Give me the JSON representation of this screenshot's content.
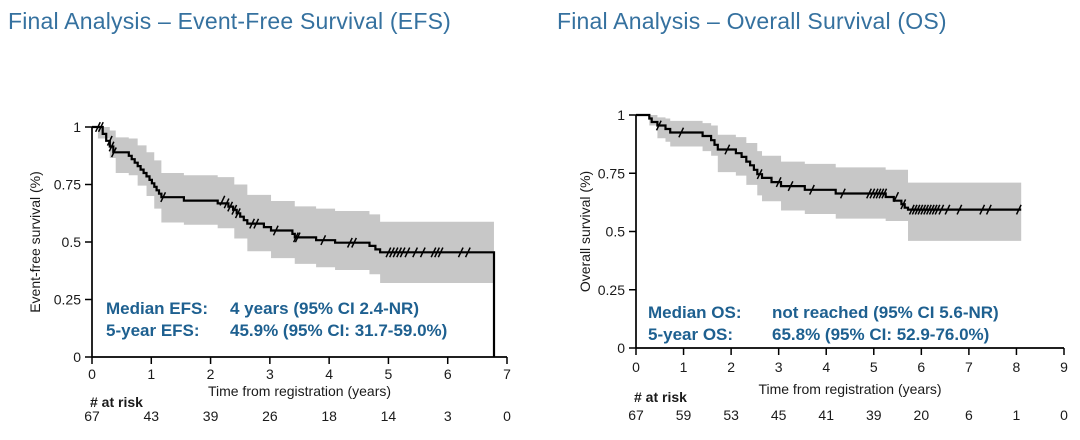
{
  "colors": {
    "title": "#35719F",
    "annotation": "#1E6090",
    "curve": "#000000",
    "ci": "#c7c7c7",
    "axis": "#000000",
    "text": "#1a1a1a"
  },
  "chart_data": [
    {
      "type": "line",
      "subtype": "kaplan_meier_step",
      "title": "Final Analysis – Event-Free Survival (EFS)",
      "xlabel": "Time from registration (years)",
      "ylabel": "Event-free survival (%)",
      "xlim": [
        0,
        7
      ],
      "ylim": [
        0,
        1
      ],
      "grid": false,
      "xticks": [
        0,
        1,
        2,
        3,
        4,
        5,
        6,
        7
      ],
      "yticks": [
        0,
        0.25,
        0.5,
        0.75,
        1
      ],
      "ytick_labels": [
        "0",
        "0.25",
        "0.5",
        "0.75",
        "1"
      ],
      "annotation_rows": [
        {
          "label": "Median EFS:",
          "value": "4 years (95% CI 2.4-NR)"
        },
        {
          "label": "5-year EFS:",
          "value": "45.9% (95% CI: 31.7-59.0%)"
        }
      ],
      "at_risk_label": "# at risk",
      "at_risk": [
        67,
        43,
        39,
        26,
        18,
        14,
        3,
        0
      ],
      "steps": [
        [
          0,
          1.0
        ],
        [
          0.18,
          1.0
        ],
        [
          0.18,
          0.97
        ],
        [
          0.24,
          0.97
        ],
        [
          0.24,
          0.94
        ],
        [
          0.3,
          0.94
        ],
        [
          0.3,
          0.915
        ],
        [
          0.36,
          0.915
        ],
        [
          0.36,
          0.89
        ],
        [
          0.62,
          0.89
        ],
        [
          0.62,
          0.875
        ],
        [
          0.67,
          0.875
        ],
        [
          0.67,
          0.86
        ],
        [
          0.72,
          0.86
        ],
        [
          0.72,
          0.845
        ],
        [
          0.77,
          0.845
        ],
        [
          0.77,
          0.83
        ],
        [
          0.82,
          0.83
        ],
        [
          0.82,
          0.815
        ],
        [
          0.87,
          0.815
        ],
        [
          0.87,
          0.8
        ],
        [
          0.92,
          0.8
        ],
        [
          0.92,
          0.785
        ],
        [
          0.97,
          0.785
        ],
        [
          0.97,
          0.77
        ],
        [
          1.01,
          0.77
        ],
        [
          1.01,
          0.755
        ],
        [
          1.05,
          0.755
        ],
        [
          1.05,
          0.74
        ],
        [
          1.09,
          0.74
        ],
        [
          1.09,
          0.725
        ],
        [
          1.13,
          0.725
        ],
        [
          1.13,
          0.71
        ],
        [
          1.17,
          0.71
        ],
        [
          1.17,
          0.695
        ],
        [
          1.55,
          0.695
        ],
        [
          1.55,
          0.68
        ],
        [
          2.12,
          0.68
        ],
        [
          2.12,
          0.668
        ],
        [
          2.3,
          0.668
        ],
        [
          2.3,
          0.654
        ],
        [
          2.38,
          0.654
        ],
        [
          2.38,
          0.64
        ],
        [
          2.44,
          0.64
        ],
        [
          2.44,
          0.625
        ],
        [
          2.5,
          0.625
        ],
        [
          2.5,
          0.61
        ],
        [
          2.56,
          0.61
        ],
        [
          2.56,
          0.595
        ],
        [
          2.62,
          0.595
        ],
        [
          2.62,
          0.58
        ],
        [
          2.9,
          0.58
        ],
        [
          2.9,
          0.565
        ],
        [
          3.02,
          0.565
        ],
        [
          3.02,
          0.55
        ],
        [
          3.38,
          0.55
        ],
        [
          3.38,
          0.535
        ],
        [
          3.42,
          0.535
        ],
        [
          3.42,
          0.52
        ],
        [
          3.78,
          0.52
        ],
        [
          3.78,
          0.508
        ],
        [
          4.1,
          0.508
        ],
        [
          4.1,
          0.497
        ],
        [
          4.68,
          0.497
        ],
        [
          4.68,
          0.483
        ],
        [
          4.78,
          0.483
        ],
        [
          4.78,
          0.468
        ],
        [
          4.86,
          0.468
        ],
        [
          4.86,
          0.455
        ],
        [
          6.78,
          0.455
        ],
        [
          6.78,
          0
        ]
      ],
      "censor_marks": [
        [
          0.1,
          1.0
        ],
        [
          0.15,
          1.0
        ],
        [
          0.3,
          0.94
        ],
        [
          0.33,
          0.915
        ],
        [
          0.37,
          0.89
        ],
        [
          1.2,
          0.695
        ],
        [
          2.2,
          0.68
        ],
        [
          2.27,
          0.668
        ],
        [
          2.33,
          0.654
        ],
        [
          2.4,
          0.64
        ],
        [
          2.46,
          0.625
        ],
        [
          2.7,
          0.58
        ],
        [
          2.77,
          0.58
        ],
        [
          3.1,
          0.55
        ],
        [
          3.44,
          0.52
        ],
        [
          3.47,
          0.52
        ],
        [
          3.9,
          0.508
        ],
        [
          4.35,
          0.497
        ],
        [
          4.42,
          0.497
        ],
        [
          5.0,
          0.455
        ],
        [
          5.06,
          0.455
        ],
        [
          5.12,
          0.455
        ],
        [
          5.18,
          0.455
        ],
        [
          5.24,
          0.455
        ],
        [
          5.32,
          0.455
        ],
        [
          5.45,
          0.455
        ],
        [
          5.58,
          0.455
        ],
        [
          5.76,
          0.455
        ],
        [
          5.82,
          0.455
        ],
        [
          5.88,
          0.455
        ],
        [
          6.22,
          0.455
        ],
        [
          6.34,
          0.455
        ]
      ],
      "ci_band": {
        "breaks": [
          {
            "x": 0.1,
            "lo": 0.95,
            "hi": 1.0
          },
          {
            "x": 0.3,
            "lo": 0.865,
            "hi": 0.985
          },
          {
            "x": 0.4,
            "lo": 0.8,
            "hi": 0.955
          },
          {
            "x": 0.62,
            "lo": 0.79,
            "hi": 0.95
          },
          {
            "x": 0.77,
            "lo": 0.745,
            "hi": 0.92
          },
          {
            "x": 0.92,
            "lo": 0.7,
            "hi": 0.89
          },
          {
            "x": 1.05,
            "lo": 0.645,
            "hi": 0.855
          },
          {
            "x": 1.17,
            "lo": 0.585,
            "hi": 0.8
          },
          {
            "x": 1.55,
            "lo": 0.575,
            "hi": 0.79
          },
          {
            "x": 2.12,
            "lo": 0.56,
            "hi": 0.782
          },
          {
            "x": 2.4,
            "lo": 0.515,
            "hi": 0.75
          },
          {
            "x": 2.62,
            "lo": 0.46,
            "hi": 0.705
          },
          {
            "x": 3.02,
            "lo": 0.43,
            "hi": 0.678
          },
          {
            "x": 3.42,
            "lo": 0.405,
            "hi": 0.655
          },
          {
            "x": 3.78,
            "lo": 0.39,
            "hi": 0.645
          },
          {
            "x": 4.1,
            "lo": 0.378,
            "hi": 0.635
          },
          {
            "x": 4.68,
            "lo": 0.36,
            "hi": 0.62
          },
          {
            "x": 4.86,
            "lo": 0.322,
            "hi": 0.588
          }
        ],
        "xend": 6.78
      }
    },
    {
      "type": "line",
      "subtype": "kaplan_meier_step",
      "title": "Final Analysis – Overall Survival (OS)",
      "xlabel": "Time from registration (years)",
      "ylabel": "Overall survival (%)",
      "xlim": [
        0,
        9
      ],
      "ylim": [
        0,
        1
      ],
      "grid": false,
      "xticks": [
        0,
        1,
        2,
        3,
        4,
        5,
        6,
        7,
        8,
        9
      ],
      "yticks": [
        0,
        0.25,
        0.5,
        0.75,
        1
      ],
      "ytick_labels": [
        "0",
        "0.25",
        "0.5",
        "0.75",
        "1"
      ],
      "annotation_rows": [
        {
          "label": "Median OS:",
          "value": "not reached (95% CI 5.6-NR)"
        },
        {
          "label": "5-year OS:",
          "value": "65.8% (95% CI: 52.9-76.0%)"
        }
      ],
      "at_risk_label": "# at risk",
      "at_risk": [
        67,
        59,
        53,
        45,
        41,
        39,
        20,
        6,
        1,
        0
      ],
      "steps": [
        [
          0,
          1.0
        ],
        [
          0.28,
          1.0
        ],
        [
          0.28,
          0.985
        ],
        [
          0.33,
          0.985
        ],
        [
          0.33,
          0.97
        ],
        [
          0.45,
          0.97
        ],
        [
          0.45,
          0.955
        ],
        [
          0.62,
          0.955
        ],
        [
          0.62,
          0.94
        ],
        [
          0.72,
          0.94
        ],
        [
          0.72,
          0.925
        ],
        [
          1.4,
          0.925
        ],
        [
          1.4,
          0.91
        ],
        [
          1.58,
          0.91
        ],
        [
          1.58,
          0.892
        ],
        [
          1.65,
          0.892
        ],
        [
          1.65,
          0.872
        ],
        [
          1.72,
          0.872
        ],
        [
          1.72,
          0.852
        ],
        [
          2.1,
          0.852
        ],
        [
          2.1,
          0.836
        ],
        [
          2.22,
          0.836
        ],
        [
          2.22,
          0.82
        ],
        [
          2.32,
          0.82
        ],
        [
          2.32,
          0.8
        ],
        [
          2.4,
          0.8
        ],
        [
          2.4,
          0.784
        ],
        [
          2.48,
          0.784
        ],
        [
          2.48,
          0.765
        ],
        [
          2.55,
          0.765
        ],
        [
          2.55,
          0.746
        ],
        [
          2.65,
          0.746
        ],
        [
          2.65,
          0.73
        ],
        [
          2.85,
          0.73
        ],
        [
          2.85,
          0.712
        ],
        [
          3.05,
          0.712
        ],
        [
          3.05,
          0.695
        ],
        [
          3.55,
          0.695
        ],
        [
          3.55,
          0.679
        ],
        [
          4.2,
          0.679
        ],
        [
          4.2,
          0.663
        ],
        [
          5.25,
          0.663
        ],
        [
          5.25,
          0.648
        ],
        [
          5.42,
          0.648
        ],
        [
          5.42,
          0.632
        ],
        [
          5.58,
          0.632
        ],
        [
          5.58,
          0.617
        ],
        [
          5.65,
          0.617
        ],
        [
          5.65,
          0.602
        ],
        [
          5.72,
          0.602
        ],
        [
          5.72,
          0.594
        ],
        [
          8.1,
          0.594
        ]
      ],
      "censor_marks": [
        [
          0.48,
          0.955
        ],
        [
          0.95,
          0.925
        ],
        [
          1.92,
          0.852
        ],
        [
          2.6,
          0.746
        ],
        [
          3.0,
          0.712
        ],
        [
          3.25,
          0.695
        ],
        [
          3.7,
          0.679
        ],
        [
          4.35,
          0.663
        ],
        [
          4.9,
          0.663
        ],
        [
          4.97,
          0.663
        ],
        [
          5.04,
          0.663
        ],
        [
          5.1,
          0.663
        ],
        [
          5.16,
          0.663
        ],
        [
          5.22,
          0.663
        ],
        [
          5.47,
          0.648
        ],
        [
          5.62,
          0.617
        ],
        [
          5.8,
          0.594
        ],
        [
          5.86,
          0.594
        ],
        [
          5.92,
          0.594
        ],
        [
          5.98,
          0.594
        ],
        [
          6.04,
          0.594
        ],
        [
          6.1,
          0.594
        ],
        [
          6.16,
          0.594
        ],
        [
          6.22,
          0.594
        ],
        [
          6.28,
          0.594
        ],
        [
          6.34,
          0.594
        ],
        [
          6.42,
          0.594
        ],
        [
          6.55,
          0.594
        ],
        [
          6.8,
          0.594
        ],
        [
          7.28,
          0.594
        ],
        [
          7.42,
          0.594
        ],
        [
          8.05,
          0.594
        ]
      ],
      "ci_band": {
        "breaks": [
          {
            "x": 0.28,
            "lo": 0.955,
            "hi": 1.0
          },
          {
            "x": 0.45,
            "lo": 0.9,
            "hi": 0.99
          },
          {
            "x": 0.62,
            "lo": 0.885,
            "hi": 0.985
          },
          {
            "x": 0.72,
            "lo": 0.865,
            "hi": 0.975
          },
          {
            "x": 1.4,
            "lo": 0.845,
            "hi": 0.965
          },
          {
            "x": 1.58,
            "lo": 0.825,
            "hi": 0.955
          },
          {
            "x": 1.72,
            "lo": 0.755,
            "hi": 0.915
          },
          {
            "x": 2.1,
            "lo": 0.74,
            "hi": 0.905
          },
          {
            "x": 2.32,
            "lo": 0.7,
            "hi": 0.88
          },
          {
            "x": 2.55,
            "lo": 0.655,
            "hi": 0.845
          },
          {
            "x": 2.65,
            "lo": 0.63,
            "hi": 0.825
          },
          {
            "x": 3.05,
            "lo": 0.59,
            "hi": 0.8
          },
          {
            "x": 3.55,
            "lo": 0.575,
            "hi": 0.79
          },
          {
            "x": 4.2,
            "lo": 0.555,
            "hi": 0.775
          },
          {
            "x": 5.25,
            "lo": 0.545,
            "hi": 0.765
          },
          {
            "x": 5.72,
            "lo": 0.46,
            "hi": 0.71
          }
        ],
        "xend": 8.1
      }
    }
  ]
}
